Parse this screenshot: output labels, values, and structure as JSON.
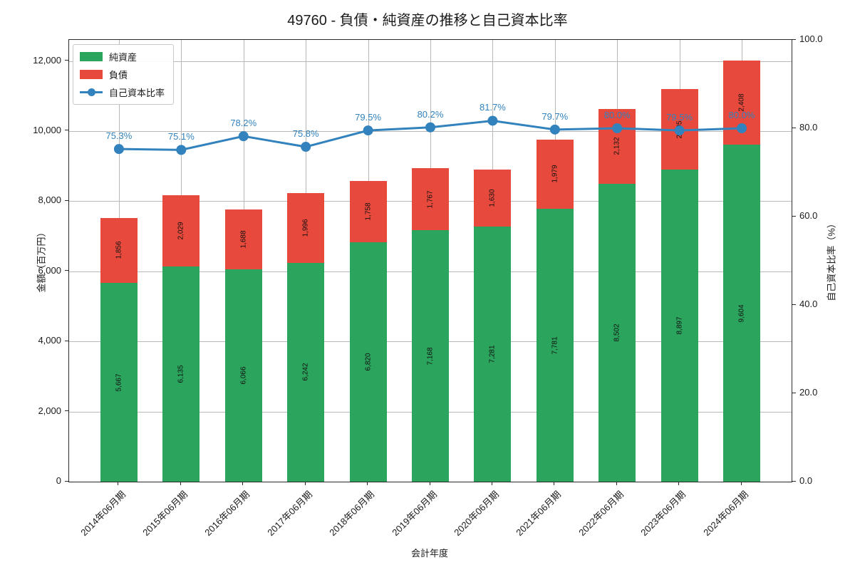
{
  "title": "49760 - 負債・純資産の推移と自己資本比率",
  "colors": {
    "net_assets": "#2ba55d",
    "liabilities": "#e7493c",
    "ratio_line": "#3182bd",
    "grid": "#b8b8b8",
    "spine": "#2b2b2b"
  },
  "legend": {
    "items": [
      {
        "label": "純資産",
        "marker": "swatch",
        "color": "#2ba55d"
      },
      {
        "label": "負債",
        "marker": "swatch",
        "color": "#e7493c"
      },
      {
        "label": "自己資本比率",
        "marker": "line-dot",
        "color": "#3182bd"
      }
    ]
  },
  "x_axis": {
    "label": "会計年度"
  },
  "y_axis_left": {
    "label": "金額（百万円）",
    "tick_labels": [
      "0",
      "2,000",
      "4,000",
      "6,000",
      "8,000",
      "10,000",
      "12,000"
    ],
    "tick_values": [
      0,
      2000,
      4000,
      6000,
      8000,
      10000,
      12000
    ]
  },
  "y_axis_right": {
    "label": "自己資本比率（%）",
    "tick_labels": [
      "0.0",
      "20.0",
      "40.0",
      "60.0",
      "80.0",
      "100.0"
    ],
    "tick_values": [
      0,
      20,
      40,
      60,
      80,
      100
    ]
  },
  "chart_data": {
    "type": "bar",
    "subtype": "stacked-bar-with-line",
    "title": "49760 - 負債・純資産の推移と自己資本比率",
    "xlabel": "会計年度",
    "ylabel_left": "金額（百万円）",
    "ylabel_right": "自己資本比率（%）",
    "ylim_left": [
      0,
      12600
    ],
    "ylim_right": [
      0,
      100
    ],
    "grid": true,
    "legend_position": "upper-left",
    "categories": [
      "2014年06月期",
      "2015年06月期",
      "2016年06月期",
      "2017年06月期",
      "2018年06月期",
      "2019年06月期",
      "2020年06月期",
      "2021年06月期",
      "2022年06月期",
      "2023年06月期",
      "2024年06月期"
    ],
    "series": [
      {
        "name": "純資産",
        "type": "bar",
        "stacked": true,
        "axis": "left",
        "color": "#2ba55d",
        "values": [
          5667,
          6135,
          6066,
          6242,
          6820,
          7168,
          7281,
          7781,
          8502,
          8897,
          9604
        ]
      },
      {
        "name": "負債",
        "type": "bar",
        "stacked": true,
        "axis": "left",
        "color": "#e7493c",
        "values": [
          1856,
          2029,
          1688,
          1996,
          1758,
          1767,
          1630,
          1979,
          2132,
          2305,
          2408
        ]
      },
      {
        "name": "自己資本比率",
        "type": "line",
        "axis": "right",
        "color": "#3182bd",
        "values": [
          75.3,
          75.1,
          78.2,
          75.8,
          79.5,
          80.2,
          81.7,
          79.7,
          80.0,
          79.5,
          80.0
        ]
      }
    ]
  }
}
